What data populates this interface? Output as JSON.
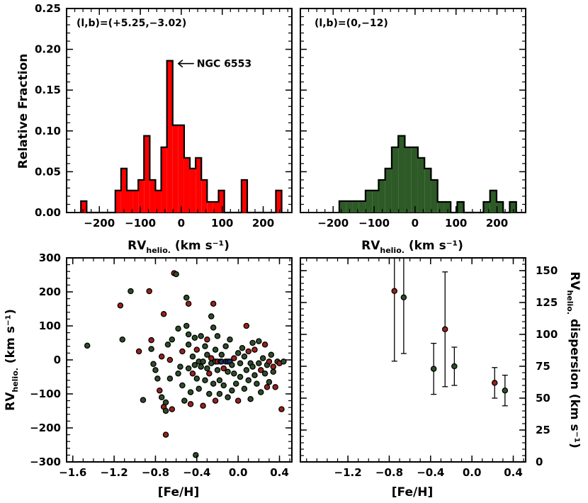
{
  "chart_data": [
    {
      "type": "bar",
      "panel": "top-left",
      "annotation": "(l,b)=(+5.25,−3.02)",
      "arrow_label": "NGC 6553",
      "arrow_target": {
        "x": -28,
        "y": 0.186
      },
      "ylabel": "Relative Fraction",
      "xlabel_main": "RV",
      "xlabel_sub": "helio.",
      "xlabel_unit": " (km s⁻¹)",
      "xlim": [
        -280,
        270
      ],
      "ylim": [
        0,
        0.25
      ],
      "xticks": [
        -200,
        -100,
        0,
        100,
        200
      ],
      "xtick_labels": [
        "−200",
        "−100",
        "0",
        "100",
        "200"
      ],
      "yticks": [
        0,
        0.05,
        0.1,
        0.15,
        0.2,
        0.25
      ],
      "ytick_labels": [
        "0.00",
        "0.05",
        "0.10",
        "0.15",
        "0.20",
        "0.25"
      ],
      "fill": "#ff0000",
      "bin_width": 14,
      "bins": [
        {
          "x0": -245,
          "v": 0.014
        },
        {
          "x0": -231,
          "v": 0
        },
        {
          "x0": -217,
          "v": 0
        },
        {
          "x0": -203,
          "v": 0
        },
        {
          "x0": -189,
          "v": 0
        },
        {
          "x0": -175,
          "v": 0
        },
        {
          "x0": -161,
          "v": 0.027
        },
        {
          "x0": -147,
          "v": 0.054
        },
        {
          "x0": -133,
          "v": 0.027
        },
        {
          "x0": -119,
          "v": 0.027
        },
        {
          "x0": -105,
          "v": 0.04
        },
        {
          "x0": -91,
          "v": 0.094
        },
        {
          "x0": -77,
          "v": 0.04
        },
        {
          "x0": -63,
          "v": 0.027
        },
        {
          "x0": -49,
          "v": 0.08
        },
        {
          "x0": -35,
          "v": 0.186
        },
        {
          "x0": -21,
          "v": 0.107
        },
        {
          "x0": -7,
          "v": 0.107
        },
        {
          "x0": 7,
          "v": 0.067
        },
        {
          "x0": 21,
          "v": 0.054
        },
        {
          "x0": 35,
          "v": 0.067
        },
        {
          "x0": 49,
          "v": 0.04
        },
        {
          "x0": 63,
          "v": 0.013
        },
        {
          "x0": 77,
          "v": 0.013
        },
        {
          "x0": 91,
          "v": 0.027
        },
        {
          "x0": 105,
          "v": 0
        },
        {
          "x0": 119,
          "v": 0
        },
        {
          "x0": 133,
          "v": 0
        },
        {
          "x0": 147,
          "v": 0.04
        },
        {
          "x0": 161,
          "v": 0
        },
        {
          "x0": 175,
          "v": 0
        },
        {
          "x0": 189,
          "v": 0
        },
        {
          "x0": 203,
          "v": 0
        },
        {
          "x0": 217,
          "v": 0
        },
        {
          "x0": 231,
          "v": 0.027
        }
      ]
    },
    {
      "type": "bar",
      "panel": "top-right",
      "annotation": "(l,b)=(0,−12)",
      "xlabel_main": "RV",
      "xlabel_sub": "helio.",
      "xlabel_unit": " (km s⁻¹)",
      "xlim": [
        -280,
        270
      ],
      "ylim": [
        0,
        0.25
      ],
      "xticks": [
        -200,
        -100,
        0,
        100,
        200
      ],
      "xtick_labels": [
        "−200",
        "−100",
        "0",
        "100",
        "200"
      ],
      "yticks": [
        0,
        0.05,
        0.1,
        0.15,
        0.2,
        0.25
      ],
      "fill": "#2d5a26",
      "bin_width": 16,
      "bins": [
        {
          "x0": -185,
          "v": 0.014
        },
        {
          "x0": -169,
          "v": 0.014
        },
        {
          "x0": -153,
          "v": 0.014
        },
        {
          "x0": -137,
          "v": 0.014
        },
        {
          "x0": -121,
          "v": 0.027
        },
        {
          "x0": -105,
          "v": 0.027
        },
        {
          "x0": -89,
          "v": 0.04
        },
        {
          "x0": -73,
          "v": 0.054
        },
        {
          "x0": -57,
          "v": 0.08
        },
        {
          "x0": -41,
          "v": 0.094
        },
        {
          "x0": -25,
          "v": 0.08
        },
        {
          "x0": -9,
          "v": 0.08
        },
        {
          "x0": 7,
          "v": 0.067
        },
        {
          "x0": 23,
          "v": 0.054
        },
        {
          "x0": 39,
          "v": 0.04
        },
        {
          "x0": 55,
          "v": 0.013
        },
        {
          "x0": 71,
          "v": 0.013
        },
        {
          "x0": 87,
          "v": 0
        },
        {
          "x0": 103,
          "v": 0.013
        },
        {
          "x0": 119,
          "v": 0
        },
        {
          "x0": 135,
          "v": 0
        },
        {
          "x0": 151,
          "v": 0
        },
        {
          "x0": 167,
          "v": 0.013
        },
        {
          "x0": 183,
          "v": 0.027
        },
        {
          "x0": 199,
          "v": 0.013
        },
        {
          "x0": 215,
          "v": 0
        },
        {
          "x0": 231,
          "v": 0.013
        }
      ]
    },
    {
      "type": "scatter",
      "panel": "bottom-left",
      "ylabel_main": "RV",
      "ylabel_sub": "helio.",
      "ylabel_unit": " (km s⁻¹)",
      "xlabel": "[Fe/H]",
      "xlim": [
        -1.66,
        0.52
      ],
      "ylim": [
        -300,
        300
      ],
      "xticks": [
        -1.6,
        -1.2,
        -0.8,
        -0.4,
        0.0,
        0.4
      ],
      "xtick_labels": [
        "−1.6",
        "−1.2",
        "−0.8",
        "−0.4",
        "0.0",
        "0.4"
      ],
      "yticks": [
        -300,
        -200,
        -100,
        0,
        100,
        200,
        300
      ],
      "ytick_labels": [
        "−300",
        "−200",
        "−100",
        "0",
        "100",
        "200",
        "300"
      ],
      "colors": {
        "r": "#9c1f1c",
        "g": "#2e4d2a",
        "b": "#1c2d66"
      },
      "points": [
        [
          -1.46,
          42,
          "g"
        ],
        [
          -1.14,
          160,
          "r"
        ],
        [
          -1.12,
          60,
          "g"
        ],
        [
          -1.04,
          202,
          "g"
        ],
        [
          -0.96,
          25,
          "r"
        ],
        [
          -0.92,
          -118,
          "g"
        ],
        [
          -0.86,
          202,
          "r"
        ],
        [
          -0.84,
          58,
          "r"
        ],
        [
          -0.84,
          32,
          "g"
        ],
        [
          -0.82,
          -12,
          "g"
        ],
        [
          -0.8,
          -30,
          "g"
        ],
        [
          -0.78,
          -55,
          "g"
        ],
        [
          -0.76,
          -90,
          "r"
        ],
        [
          -0.74,
          10,
          "r"
        ],
        [
          -0.74,
          -110,
          "g"
        ],
        [
          -0.72,
          -138,
          "r"
        ],
        [
          -0.72,
          135,
          "r"
        ],
        [
          -0.7,
          -125,
          "g"
        ],
        [
          -0.7,
          -150,
          "g"
        ],
        [
          -0.7,
          -220,
          "r"
        ],
        [
          -0.68,
          45,
          "g"
        ],
        [
          -0.66,
          0,
          "r"
        ],
        [
          -0.66,
          -55,
          "g"
        ],
        [
          -0.64,
          -145,
          "r"
        ],
        [
          -0.64,
          60,
          "g"
        ],
        [
          -0.62,
          255,
          "r"
        ],
        [
          -0.6,
          252,
          "g"
        ],
        [
          -0.58,
          92,
          "g"
        ],
        [
          -0.58,
          -40,
          "g"
        ],
        [
          -0.56,
          -20,
          "g"
        ],
        [
          -0.54,
          25,
          "r"
        ],
        [
          -0.54,
          -75,
          "g"
        ],
        [
          -0.52,
          -120,
          "g"
        ],
        [
          -0.5,
          183,
          "g"
        ],
        [
          -0.5,
          100,
          "g"
        ],
        [
          -0.48,
          165,
          "r"
        ],
        [
          -0.48,
          75,
          "g"
        ],
        [
          -0.48,
          -25,
          "g"
        ],
        [
          -0.48,
          45,
          "g"
        ],
        [
          -0.46,
          -130,
          "r"
        ],
        [
          -0.46,
          -95,
          "g"
        ],
        [
          -0.44,
          10,
          "g"
        ],
        [
          -0.44,
          -40,
          "r"
        ],
        [
          -0.42,
          65,
          "g"
        ],
        [
          -0.42,
          -15,
          "g"
        ],
        [
          -0.41,
          -280,
          "g"
        ],
        [
          -0.4,
          -55,
          "g"
        ],
        [
          -0.4,
          30,
          "r"
        ],
        [
          -0.38,
          -5,
          "g"
        ],
        [
          -0.38,
          -85,
          "g"
        ],
        [
          -0.36,
          70,
          "g"
        ],
        [
          -0.36,
          -20,
          "g"
        ],
        [
          -0.34,
          -135,
          "r"
        ],
        [
          -0.34,
          -5,
          "g"
        ],
        [
          -0.32,
          40,
          "g"
        ],
        [
          -0.32,
          -60,
          "g"
        ],
        [
          -0.3,
          -25,
          "g"
        ],
        [
          -0.3,
          60,
          "r"
        ],
        [
          -0.3,
          15,
          "g"
        ],
        [
          -0.28,
          -100,
          "g"
        ],
        [
          -0.28,
          -40,
          "r"
        ],
        [
          -0.26,
          5,
          "r"
        ],
        [
          -0.26,
          128,
          "g"
        ],
        [
          -0.26,
          -10,
          "g"
        ],
        [
          -0.24,
          165,
          "r"
        ],
        [
          -0.24,
          -70,
          "g"
        ],
        [
          -0.24,
          95,
          "g"
        ],
        [
          -0.22,
          -5,
          "g"
        ],
        [
          -0.22,
          -120,
          "r"
        ],
        [
          -0.22,
          30,
          "g"
        ],
        [
          -0.2,
          -30,
          "g"
        ],
        [
          -0.2,
          70,
          "g"
        ],
        [
          -0.2,
          -5,
          "r"
        ],
        [
          -0.18,
          -60,
          "g"
        ],
        [
          -0.18,
          -100,
          "g"
        ],
        [
          -0.17,
          -5,
          "g"
        ],
        [
          -0.16,
          15,
          "g"
        ],
        [
          -0.16,
          -5,
          "b"
        ],
        [
          -0.14,
          -75,
          "g"
        ],
        [
          -0.14,
          -25,
          "r"
        ],
        [
          -0.12,
          -5,
          "b"
        ],
        [
          -0.12,
          40,
          "g"
        ],
        [
          -0.1,
          -5,
          "b"
        ],
        [
          -0.1,
          -110,
          "g"
        ],
        [
          -0.1,
          -35,
          "g"
        ],
        [
          -0.08,
          -5,
          "b"
        ],
        [
          -0.08,
          60,
          "g"
        ],
        [
          -0.06,
          -15,
          "g"
        ],
        [
          -0.06,
          -90,
          "g"
        ],
        [
          -0.04,
          5,
          "r"
        ],
        [
          -0.04,
          -40,
          "g"
        ],
        [
          -0.02,
          -70,
          "g"
        ],
        [
          0,
          20,
          "g"
        ],
        [
          0,
          -120,
          "r"
        ],
        [
          0.02,
          -10,
          "g"
        ],
        [
          0.02,
          -50,
          "g"
        ],
        [
          0.04,
          35,
          "g"
        ],
        [
          0.06,
          -85,
          "g"
        ],
        [
          0.06,
          10,
          "g"
        ],
        [
          0.08,
          100,
          "r"
        ],
        [
          0.08,
          -30,
          "g"
        ],
        [
          0.1,
          -60,
          "g"
        ],
        [
          0.1,
          25,
          "r"
        ],
        [
          0.12,
          -10,
          "g"
        ],
        [
          0.12,
          -115,
          "g"
        ],
        [
          0.14,
          50,
          "g"
        ],
        [
          0.14,
          -20,
          "g"
        ],
        [
          0.16,
          -45,
          "g"
        ],
        [
          0.16,
          30,
          "r"
        ],
        [
          0.18,
          -70,
          "g"
        ],
        [
          0.2,
          -10,
          "g"
        ],
        [
          0.2,
          55,
          "g"
        ],
        [
          0.22,
          -30,
          "r"
        ],
        [
          0.22,
          -95,
          "g"
        ],
        [
          0.24,
          5,
          "g"
        ],
        [
          0.26,
          -40,
          "g"
        ],
        [
          0.26,
          45,
          "r"
        ],
        [
          0.28,
          -80,
          "r"
        ],
        [
          0.28,
          -15,
          "g"
        ],
        [
          0.3,
          -5,
          "r"
        ],
        [
          0.3,
          -65,
          "g"
        ],
        [
          0.32,
          15,
          "g"
        ],
        [
          0.34,
          -20,
          "r"
        ],
        [
          0.34,
          -35,
          "g"
        ],
        [
          0.36,
          -80,
          "r"
        ],
        [
          0.38,
          -5,
          "g"
        ],
        [
          0.4,
          -10,
          "r"
        ],
        [
          0.42,
          -145,
          "r"
        ],
        [
          0.44,
          -5,
          "g"
        ]
      ]
    },
    {
      "type": "errorbar",
      "panel": "bottom-right",
      "ylabel_main": "RV",
      "ylabel_sub": "helio.",
      "ylabel_unit": " dispersion (km s⁻¹)",
      "xlabel": "[Fe/H]",
      "xlim": [
        -1.66,
        0.52
      ],
      "ylim": [
        0,
        160
      ],
      "xticks": [
        -1.2,
        -0.8,
        -0.4,
        0.0,
        0.4
      ],
      "xtick_labels": [
        "−1.2",
        "−0.8",
        "−0.4",
        "0.0",
        "0.4"
      ],
      "yticks": [
        0,
        25,
        50,
        75,
        100,
        125,
        150
      ],
      "ytick_labels": [
        "0",
        "25",
        "50",
        "75",
        "100",
        "125",
        "150"
      ],
      "points": [
        {
          "x": -0.75,
          "y": 134,
          "err": 55,
          "color": "#9c1f1c"
        },
        {
          "x": -0.66,
          "y": 129,
          "err": 44,
          "color": "#2e4d2a"
        },
        {
          "x": -0.37,
          "y": 73,
          "err": 20,
          "color": "#2e4d2a"
        },
        {
          "x": -0.26,
          "y": 104,
          "err": 45,
          "color": "#9c1f1c"
        },
        {
          "x": -0.17,
          "y": 75,
          "err": 15,
          "color": "#2e4d2a"
        },
        {
          "x": 0.22,
          "y": 62,
          "err": 12,
          "color": "#9c1f1c"
        },
        {
          "x": 0.32,
          "y": 56,
          "err": 12,
          "color": "#2e4d2a"
        }
      ]
    }
  ]
}
